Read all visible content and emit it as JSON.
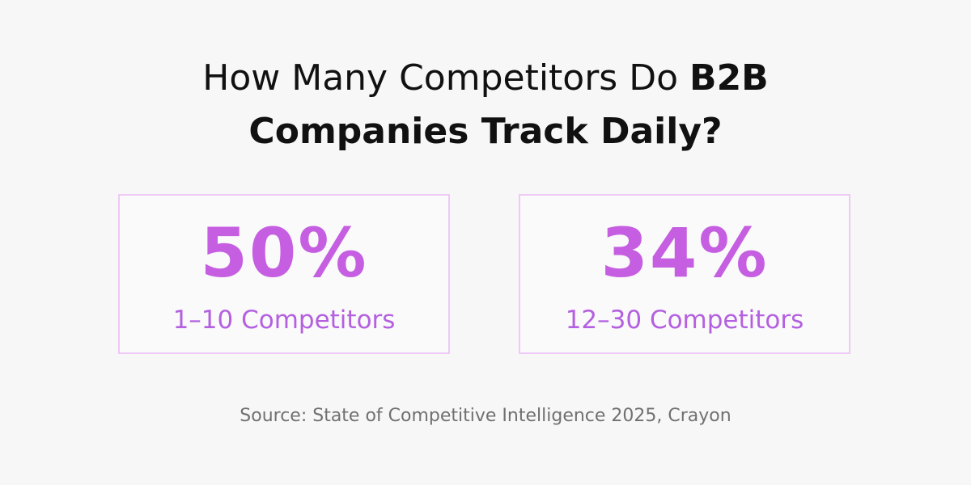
{
  "header": {
    "title_regular": "How Many Competitors Do",
    "title_bold_1": "B2B",
    "title_bold_2": "Companies Track Daily?"
  },
  "stats": [
    {
      "value": "50%",
      "label": "1–10 Competitors"
    },
    {
      "value": "34%",
      "label": "12–30 Competitors"
    }
  ],
  "footer": {
    "source": "Source: State of Competitive Intelligence 2025, Crayon"
  }
}
